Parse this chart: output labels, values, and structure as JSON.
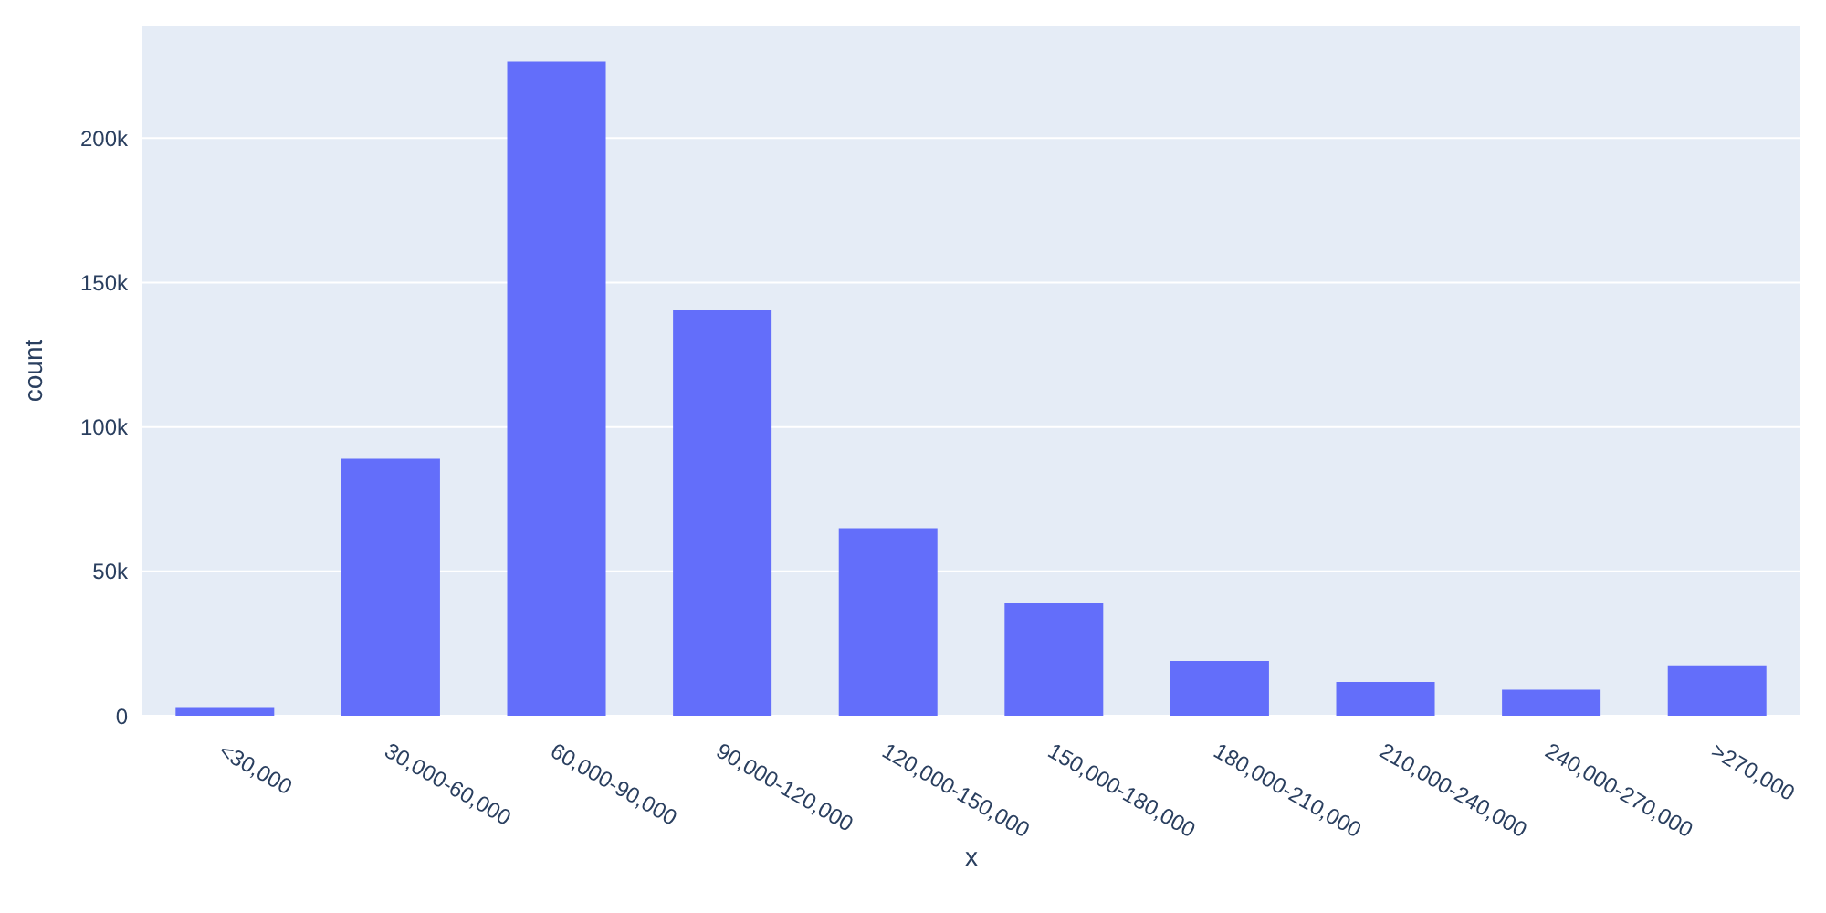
{
  "chart_data": {
    "type": "bar",
    "xlabel": "x",
    "ylabel": "count",
    "categories": [
      "<30,000",
      "30,000-60,000",
      "60,000-90,000",
      "90,000-120,000",
      "120,000-150,000",
      "150,000-180,000",
      "180,000-210,000",
      "210,000-240,000",
      "240,000-270,000",
      ">270,000"
    ],
    "values": [
      3000,
      89000,
      226500,
      140500,
      65000,
      39000,
      19000,
      11700,
      9000,
      17500
    ],
    "color": "#636efa",
    "ylim": [
      0,
      239000
    ],
    "yticks": [
      0,
      {
        "value": 50000,
        "label": "50k"
      },
      {
        "value": 100000,
        "label": "100k"
      },
      {
        "value": 150000,
        "label": "150k"
      },
      {
        "value": 200000,
        "label": "200k"
      }
    ],
    "grid": "y"
  }
}
